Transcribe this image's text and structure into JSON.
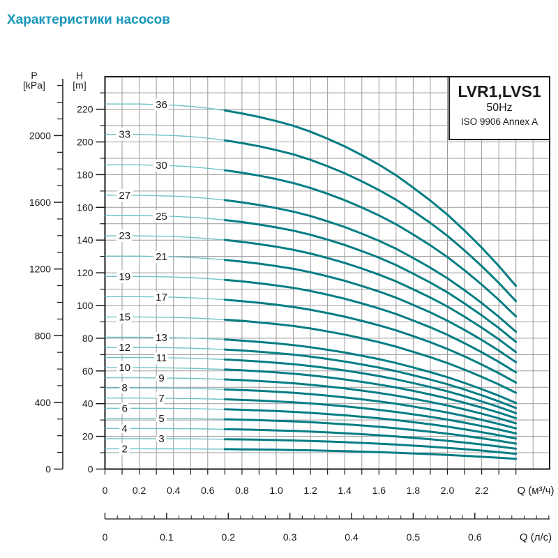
{
  "page_title": "Характеристики насосов",
  "colors": {
    "title": "#1697ba",
    "curve_thin": "#6fc4c6",
    "curve_thick": "#057d84",
    "grid": "#9a9a9a",
    "axis": "#1a1a1a",
    "text": "#1a1a1a"
  },
  "legend": {
    "model": "LVR1,LVS1",
    "frequency": "50Hz",
    "standard": "ISO 9906 Annex A"
  },
  "chart_data": {
    "type": "line",
    "title": "Характеристики насосов",
    "x_axis_primary": {
      "unit": "Q (м³/ч)",
      "labels": [
        "0",
        "0.2",
        "0.4",
        "0.6",
        "0.8",
        "1.0",
        "1.2",
        "1.4",
        "1.6",
        "1.8",
        "2.0",
        "2.2"
      ],
      "label_step": 0.2,
      "tick_step": 0.1,
      "tick_max": 2.4,
      "range": [
        0,
        2.6
      ]
    },
    "x_axis_secondary": {
      "unit": "Q (л/с)",
      "labels": [
        "0",
        "0.1",
        "0.2",
        "0.3",
        "0.4",
        "0.5",
        "0.6"
      ],
      "label_step": 0.1,
      "minor_step": 0.02,
      "minor_max": 0.72,
      "m3h_per_unit": 3.6
    },
    "y_axis_head": {
      "name": "H",
      "unit": "[m]",
      "labels": [
        "0",
        "20",
        "40",
        "60",
        "80",
        "100",
        "120",
        "140",
        "160",
        "180",
        "200",
        "220"
      ],
      "label_step": 20,
      "minor_step": 10,
      "minor_max": 230,
      "range": [
        0,
        239
      ]
    },
    "y_axis_pressure": {
      "name": "P",
      "unit": "[kPa]",
      "labels": [
        "0",
        "400",
        "800",
        "1200",
        "1600",
        "2000"
      ],
      "label_step": 400,
      "minor_step": 100,
      "minor_max": 2300,
      "kpa_per_m": 9.81
    },
    "grid": {
      "vertical_step_q": 0.1,
      "vertical_max_q": 2.5,
      "horizontal_step_m": 10,
      "horizontal_max_m": 230
    },
    "q_samples": [
      0,
      0.1,
      0.2,
      0.3,
      0.4,
      0.5,
      0.6,
      0.7,
      0.8,
      0.9,
      1.0,
      1.1,
      1.2,
      1.3,
      1.4,
      1.5,
      1.6,
      1.7,
      1.8,
      1.9,
      2.0,
      2.1,
      2.2,
      2.3,
      2.4
    ],
    "head_per_stage_m": [
      6.2,
      6.2,
      6.2,
      6.19,
      6.18,
      6.16,
      6.13,
      6.09,
      6.04,
      5.98,
      5.91,
      5.83,
      5.73,
      5.61,
      5.48,
      5.33,
      5.17,
      4.99,
      4.78,
      4.56,
      4.32,
      4.05,
      3.76,
      3.45,
      3.11
    ],
    "thick_segment_q_range": [
      0.7,
      2.4
    ],
    "curves": [
      {
        "stages": 2,
        "label": "2",
        "label_q": 0.115
      },
      {
        "stages": 3,
        "label": "3",
        "label_q": 0.33
      },
      {
        "stages": 4,
        "label": "4",
        "label_q": 0.115
      },
      {
        "stages": 5,
        "label": "5",
        "label_q": 0.33
      },
      {
        "stages": 6,
        "label": "6",
        "label_q": 0.115
      },
      {
        "stages": 7,
        "label": "7",
        "label_q": 0.33
      },
      {
        "stages": 8,
        "label": "8",
        "label_q": 0.115
      },
      {
        "stages": 9,
        "label": "9",
        "label_q": 0.33
      },
      {
        "stages": 10,
        "label": "10",
        "label_q": 0.115
      },
      {
        "stages": 11,
        "label": "11",
        "label_q": 0.33
      },
      {
        "stages": 12,
        "label": "12",
        "label_q": 0.115
      },
      {
        "stages": 13,
        "label": "13",
        "label_q": 0.33
      },
      {
        "stages": 15,
        "label": "15",
        "label_q": 0.115
      },
      {
        "stages": 17,
        "label": "17",
        "label_q": 0.33
      },
      {
        "stages": 19,
        "label": "19",
        "label_q": 0.115
      },
      {
        "stages": 21,
        "label": "21",
        "label_q": 0.33
      },
      {
        "stages": 23,
        "label": "23",
        "label_q": 0.115
      },
      {
        "stages": 25,
        "label": "25",
        "label_q": 0.33
      },
      {
        "stages": 27,
        "label": "27",
        "label_q": 0.115
      },
      {
        "stages": 30,
        "label": "30",
        "label_q": 0.33
      },
      {
        "stages": 33,
        "label": "33",
        "label_q": 0.115
      },
      {
        "stages": 36,
        "label": "36",
        "label_q": 0.33
      }
    ]
  }
}
